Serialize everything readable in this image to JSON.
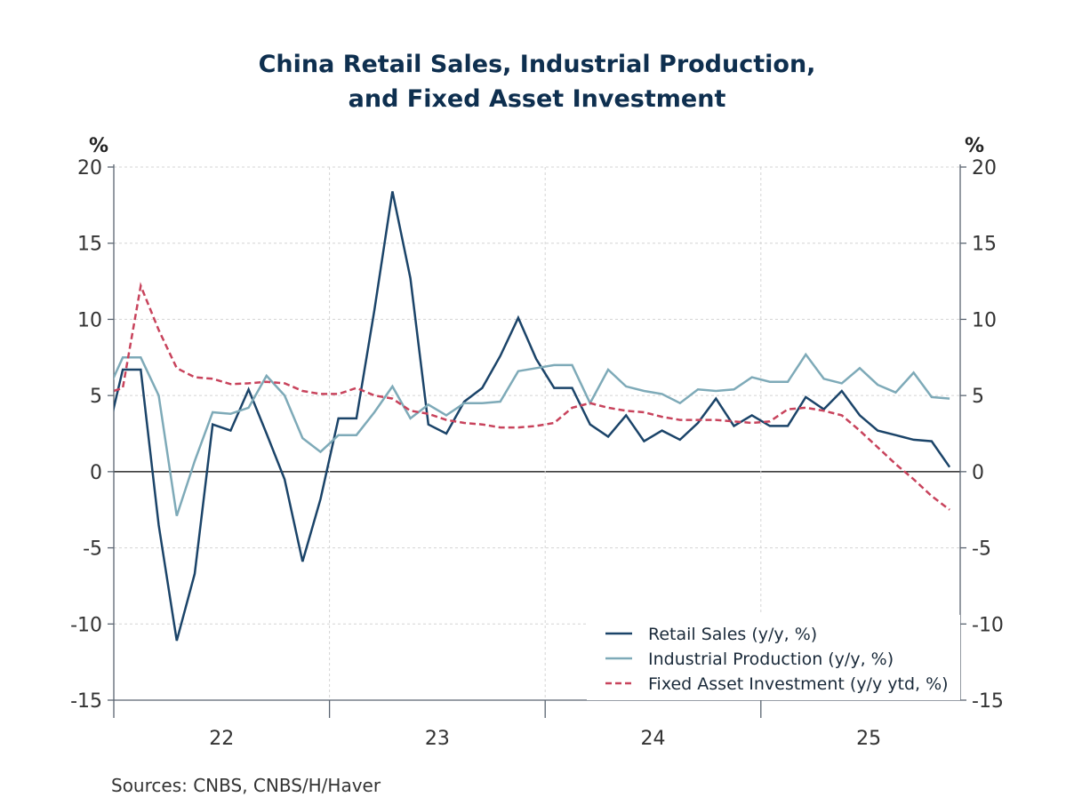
{
  "chart_data": {
    "type": "line",
    "title_lines": [
      "China Retail Sales, Industrial Production,",
      "and Fixed Asset Investment"
    ],
    "left_unit": "%",
    "right_unit": "%",
    "ylim": [
      -15,
      20
    ],
    "yticks": [
      -15,
      -10,
      -5,
      0,
      5,
      10,
      15,
      20
    ],
    "ytick_labels": [
      "-15",
      "-10",
      "-5",
      "0",
      "5",
      "10",
      "15",
      "20"
    ],
    "x_start": "Dec 2021",
    "x_frequency": "monthly",
    "x_visible_from": "Jan 2022",
    "year_labels": [
      "22",
      "23",
      "24",
      "25"
    ],
    "grid": true,
    "legend_placement": "bottom-right",
    "series": [
      {
        "name": "Retail Sales (y/y, %)",
        "color": "#1b4469",
        "style": "solid",
        "values": [
          1.7,
          6.7,
          6.7,
          -3.5,
          -11.1,
          -6.7,
          3.1,
          2.7,
          5.4,
          2.5,
          -0.5,
          -5.9,
          -1.8,
          3.5,
          3.5,
          10.6,
          18.4,
          12.7,
          3.1,
          2.5,
          4.6,
          5.5,
          7.6,
          10.1,
          7.4,
          5.5,
          5.5,
          3.1,
          2.3,
          3.7,
          2.0,
          2.7,
          2.1,
          3.2,
          4.8,
          3.0,
          3.7,
          3.0,
          3.0,
          4.9,
          4.1,
          5.3,
          3.7,
          2.7,
          2.4,
          2.1,
          2.0,
          0.3
        ]
      },
      {
        "name": "Industrial Production (y/y, %)",
        "color": "#7eaab8",
        "style": "solid",
        "values": [
          4.9,
          7.5,
          7.5,
          5.0,
          -2.9,
          0.7,
          3.9,
          3.8,
          4.2,
          6.3,
          5.0,
          2.2,
          1.3,
          2.4,
          2.4,
          3.9,
          5.6,
          3.5,
          4.4,
          3.7,
          4.5,
          4.5,
          4.6,
          6.6,
          6.8,
          7.0,
          7.0,
          4.5,
          6.7,
          5.6,
          5.3,
          5.1,
          4.5,
          5.4,
          5.3,
          5.4,
          6.2,
          5.9,
          5.9,
          7.7,
          6.1,
          5.8,
          6.8,
          5.7,
          5.2,
          6.5,
          4.9,
          4.8
        ]
      },
      {
        "name": "Fixed Asset Investment (y/y ytd, %)",
        "color": "#c8435c",
        "style": "dashed",
        "values": [
          5.1,
          5.5,
          12.2,
          9.3,
          6.8,
          6.2,
          6.1,
          5.75,
          5.8,
          5.9,
          5.8,
          5.3,
          5.1,
          5.1,
          5.5,
          5.0,
          4.8,
          4.0,
          3.8,
          3.4,
          3.2,
          3.1,
          2.9,
          2.9,
          3.0,
          3.2,
          4.2,
          4.5,
          4.2,
          4.0,
          3.9,
          3.6,
          3.4,
          3.4,
          3.4,
          3.3,
          3.2,
          3.3,
          4.1,
          4.2,
          4.0,
          3.7,
          2.7,
          1.6,
          0.5,
          -0.5,
          -1.6,
          -2.5
        ]
      }
    ],
    "source": "Sources:  CNBS, CNBS/H/Haver"
  }
}
